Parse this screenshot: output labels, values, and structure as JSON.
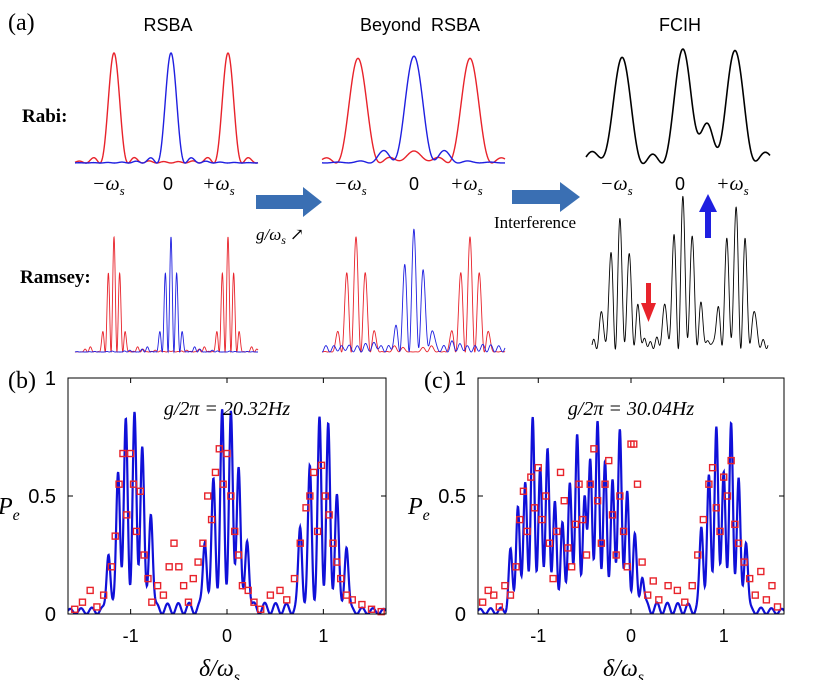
{
  "colors": {
    "rabi_sideband": "#e8232b",
    "rabi_carrier": "#1f1fe0",
    "fcih": "#000000",
    "theory": "#1010d8",
    "data": "#e8232b",
    "arrow": "#3a6fb3"
  },
  "panel_a": {
    "label": "(a)",
    "col_titles": [
      "RSBA",
      "Beyond  RSBA",
      "FCIH"
    ],
    "row_labels": {
      "rabi": "Rabi:",
      "ramsey": "Ramsey:"
    },
    "tick_labels": [
      "−ω",
      "0",
      "+ω"
    ],
    "tick_subscript": "s",
    "arrow1_label": "g/ω",
    "arrow1_suffix": "↗",
    "arrow2_label": "Interference"
  },
  "chart_data": [
    {
      "type": "line",
      "panel": "(b)",
      "title": "g/2π = 20.32Hz",
      "xlabel": "δ/ωs",
      "ylabel": "Pe",
      "xlim": [
        -1.65,
        1.65
      ],
      "ylim": [
        0,
        1
      ],
      "xticks": [
        -1,
        0,
        1
      ],
      "yticks": [
        0,
        0.5,
        1
      ],
      "ytick_labels": [
        "0",
        "0.5",
        "1"
      ],
      "xtick_labels": [
        "-1",
        "0",
        "1"
      ],
      "series": [
        {
          "name": "theory",
          "style": "line",
          "groups": [
            {
              "center": -1.0,
              "peaks": [
                [
                  -1.23,
                  0.25
                ],
                [
                  -1.13,
                  0.6
                ],
                [
                  -1.05,
                  0.8
                ],
                [
                  -0.96,
                  0.82
                ],
                [
                  -0.88,
                  0.7
                ],
                [
                  -0.79,
                  0.42
                ]
              ]
            },
            {
              "center": 0.0,
              "peaks": [
                [
                  -0.23,
                  0.3
                ],
                [
                  -0.14,
                  0.55
                ],
                [
                  -0.05,
                  0.82
                ],
                [
                  0.04,
                  0.82
                ],
                [
                  0.12,
                  0.62
                ],
                [
                  0.21,
                  0.3
                ]
              ]
            },
            {
              "center": 1.0,
              "peaks": [
                [
                  0.76,
                  0.35
                ],
                [
                  0.86,
                  0.6
                ],
                [
                  0.96,
                  0.8
                ],
                [
                  1.05,
                  0.78
                ],
                [
                  1.14,
                  0.5
                ],
                [
                  1.24,
                  0.28
                ]
              ]
            }
          ]
        },
        {
          "name": "data",
          "style": "square_markers",
          "points": [
            [
              -1.58,
              0.02
            ],
            [
              -1.5,
              0.05
            ],
            [
              -1.42,
              0.1
            ],
            [
              -1.35,
              0.03
            ],
            [
              -1.28,
              0.08
            ],
            [
              -1.2,
              0.2
            ],
            [
              -1.16,
              0.33
            ],
            [
              -1.12,
              0.55
            ],
            [
              -1.08,
              0.68
            ],
            [
              -1.04,
              0.42
            ],
            [
              -1.0,
              0.68
            ],
            [
              -0.97,
              0.55
            ],
            [
              -0.94,
              0.35
            ],
            [
              -0.9,
              0.52
            ],
            [
              -0.86,
              0.25
            ],
            [
              -0.82,
              0.15
            ],
            [
              -0.78,
              0.05
            ],
            [
              -0.72,
              0.12
            ],
            [
              -0.66,
              0.08
            ],
            [
              -0.6,
              0.2
            ],
            [
              -0.55,
              0.3
            ],
            [
              -0.5,
              0.2
            ],
            [
              -0.45,
              0.12
            ],
            [
              -0.4,
              0.05
            ],
            [
              -0.35,
              0.15
            ],
            [
              -0.3,
              0.22
            ],
            [
              -0.25,
              0.3
            ],
            [
              -0.2,
              0.5
            ],
            [
              -0.16,
              0.4
            ],
            [
              -0.12,
              0.6
            ],
            [
              -0.08,
              0.7
            ],
            [
              -0.04,
              0.55
            ],
            [
              0.0,
              0.68
            ],
            [
              0.04,
              0.5
            ],
            [
              0.08,
              0.35
            ],
            [
              0.12,
              0.25
            ],
            [
              0.16,
              0.12
            ],
            [
              0.22,
              0.1
            ],
            [
              0.28,
              0.05
            ],
            [
              0.35,
              0.02
            ],
            [
              0.45,
              0.08
            ],
            [
              0.55,
              0.1
            ],
            [
              0.62,
              0.06
            ],
            [
              0.7,
              0.15
            ],
            [
              0.76,
              0.3
            ],
            [
              0.82,
              0.45
            ],
            [
              0.86,
              0.5
            ],
            [
              0.9,
              0.6
            ],
            [
              0.94,
              0.35
            ],
            [
              0.98,
              0.63
            ],
            [
              1.02,
              0.5
            ],
            [
              1.06,
              0.42
            ],
            [
              1.1,
              0.3
            ],
            [
              1.14,
              0.22
            ],
            [
              1.18,
              0.15
            ],
            [
              1.24,
              0.08
            ],
            [
              1.3,
              0.06
            ],
            [
              1.4,
              0.04
            ],
            [
              1.5,
              0.02
            ],
            [
              1.6,
              0.01
            ]
          ]
        }
      ]
    },
    {
      "type": "line",
      "panel": "(c)",
      "title": "g/2π = 30.04Hz",
      "xlabel": "δ/ωs",
      "ylabel": "Pe",
      "xlim": [
        -1.65,
        1.65
      ],
      "ylim": [
        0,
        1
      ],
      "xticks": [
        -1,
        0,
        1
      ],
      "yticks": [
        0,
        0.5,
        1
      ],
      "ytick_labels": [
        "0",
        "0.5",
        "1"
      ],
      "xtick_labels": [
        "-1",
        "0",
        "1"
      ],
      "series": [
        {
          "name": "theory",
          "style": "line",
          "groups": [
            {
              "center": -1.0,
              "peaks": [
                [
                  -1.3,
                  0.25
                ],
                [
                  -1.22,
                  0.45
                ],
                [
                  -1.14,
                  0.55
                ],
                [
                  -1.06,
                  0.8
                ],
                [
                  -0.98,
                  0.6
                ],
                [
                  -0.9,
                  0.7
                ],
                [
                  -0.82,
                  0.45
                ],
                [
                  -0.74,
                  0.35
                ],
                [
                  -0.66,
                  0.55
                ],
                [
                  -0.58,
                  0.75
                ],
                [
                  -0.5,
                  0.45
                ]
              ]
            },
            {
              "center": 0.0,
              "peaks": [
                [
                  -0.44,
                  0.65
                ],
                [
                  -0.36,
                  0.8
                ],
                [
                  -0.28,
                  0.6
                ],
                [
                  -0.2,
                  0.55
                ],
                [
                  -0.12,
                  0.78
                ],
                [
                  -0.04,
                  0.48
                ],
                [
                  0.04,
                  0.3
                ],
                [
                  0.12,
                  0.15
                ]
              ]
            },
            {
              "center": 1.0,
              "peaks": [
                [
                  0.76,
                  0.35
                ],
                [
                  0.84,
                  0.55
                ],
                [
                  0.92,
                  0.78
                ],
                [
                  1.0,
                  0.6
                ],
                [
                  1.08,
                  0.78
                ],
                [
                  1.16,
                  0.55
                ],
                [
                  1.24,
                  0.3
                ]
              ]
            }
          ]
        },
        {
          "name": "data",
          "style": "square_markers",
          "points": [
            [
              -1.6,
              0.05
            ],
            [
              -1.54,
              0.1
            ],
            [
              -1.48,
              0.08
            ],
            [
              -1.42,
              0.03
            ],
            [
              -1.36,
              0.12
            ],
            [
              -1.3,
              0.08
            ],
            [
              -1.24,
              0.2
            ],
            [
              -1.2,
              0.4
            ],
            [
              -1.16,
              0.52
            ],
            [
              -1.12,
              0.35
            ],
            [
              -1.08,
              0.58
            ],
            [
              -1.04,
              0.45
            ],
            [
              -1.0,
              0.62
            ],
            [
              -0.96,
              0.4
            ],
            [
              -0.92,
              0.5
            ],
            [
              -0.88,
              0.3
            ],
            [
              -0.84,
              0.15
            ],
            [
              -0.8,
              0.35
            ],
            [
              -0.76,
              0.6
            ],
            [
              -0.72,
              0.48
            ],
            [
              -0.68,
              0.28
            ],
            [
              -0.64,
              0.2
            ],
            [
              -0.6,
              0.38
            ],
            [
              -0.56,
              0.55
            ],
            [
              -0.52,
              0.4
            ],
            [
              -0.48,
              0.25
            ],
            [
              -0.44,
              0.55
            ],
            [
              -0.4,
              0.7
            ],
            [
              -0.36,
              0.48
            ],
            [
              -0.32,
              0.3
            ],
            [
              -0.28,
              0.55
            ],
            [
              -0.24,
              0.65
            ],
            [
              -0.2,
              0.42
            ],
            [
              -0.16,
              0.25
            ],
            [
              -0.12,
              0.5
            ],
            [
              -0.08,
              0.35
            ],
            [
              -0.04,
              0.2
            ],
            [
              0.0,
              0.72
            ],
            [
              0.03,
              0.72
            ],
            [
              0.07,
              0.55
            ],
            [
              0.12,
              0.22
            ],
            [
              0.18,
              0.08
            ],
            [
              0.24,
              0.14
            ],
            [
              0.3,
              0.06
            ],
            [
              0.4,
              0.12
            ],
            [
              0.5,
              0.1
            ],
            [
              0.58,
              0.05
            ],
            [
              0.66,
              0.12
            ],
            [
              0.72,
              0.25
            ],
            [
              0.78,
              0.4
            ],
            [
              0.84,
              0.55
            ],
            [
              0.88,
              0.62
            ],
            [
              0.92,
              0.45
            ],
            [
              0.96,
              0.35
            ],
            [
              1.0,
              0.58
            ],
            [
              1.04,
              0.5
            ],
            [
              1.08,
              0.65
            ],
            [
              1.12,
              0.38
            ],
            [
              1.16,
              0.3
            ],
            [
              1.22,
              0.22
            ],
            [
              1.28,
              0.15
            ],
            [
              1.34,
              0.08
            ],
            [
              1.4,
              0.18
            ],
            [
              1.46,
              0.06
            ],
            [
              1.52,
              0.12
            ],
            [
              1.58,
              0.03
            ]
          ]
        }
      ]
    }
  ]
}
